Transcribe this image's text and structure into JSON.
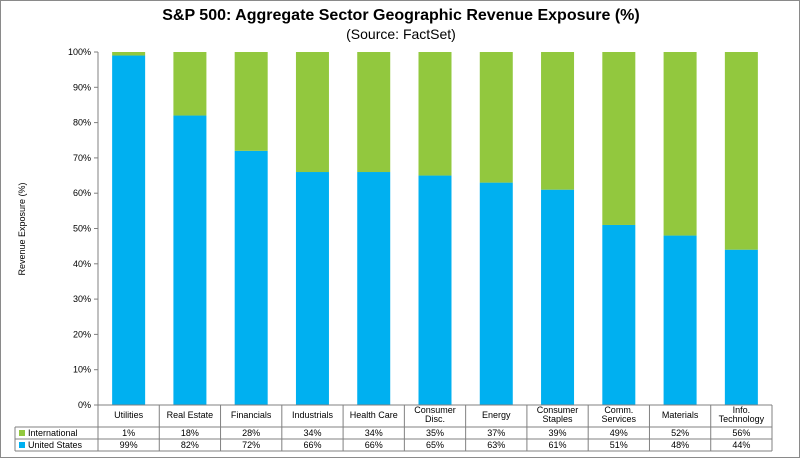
{
  "chart_data": {
    "type": "bar",
    "stacked": true,
    "title": "S&P 500: Aggregate Sector Geographic Revenue Exposure (%)",
    "subtitle": "(Source: FactSet)",
    "xlabel": "",
    "ylabel": "Revenue Exposure (%)",
    "ylim": [
      0,
      100
    ],
    "yticks": [
      "0%",
      "10%",
      "20%",
      "30%",
      "40%",
      "50%",
      "60%",
      "70%",
      "80%",
      "90%",
      "100%"
    ],
    "grid": false,
    "legend": "data table",
    "categories": [
      [
        "Utilities"
      ],
      [
        "Real Estate"
      ],
      [
        "Financials"
      ],
      [
        "Industrials"
      ],
      [
        "Health Care"
      ],
      [
        "Consumer",
        "Disc."
      ],
      [
        "Energy"
      ],
      [
        "Consumer",
        "Staples"
      ],
      [
        "Comm.",
        "Services"
      ],
      [
        "Materials"
      ],
      [
        "Info.",
        "Technology"
      ]
    ],
    "series": [
      {
        "name": "United States",
        "color": "#00b0f0",
        "values": [
          99,
          82,
          72,
          66,
          66,
          65,
          63,
          61,
          51,
          48,
          44
        ],
        "labels": [
          "99%",
          "82%",
          "72%",
          "66%",
          "66%",
          "65%",
          "63%",
          "61%",
          "51%",
          "48%",
          "44%"
        ]
      },
      {
        "name": "International",
        "color": "#92c83e",
        "values": [
          1,
          18,
          28,
          34,
          34,
          35,
          37,
          39,
          49,
          52,
          56
        ],
        "labels": [
          "1%",
          "18%",
          "28%",
          "34%",
          "34%",
          "35%",
          "37%",
          "39%",
          "49%",
          "52%",
          "56%"
        ]
      }
    ],
    "table_rows": [
      "International",
      "United States"
    ]
  }
}
